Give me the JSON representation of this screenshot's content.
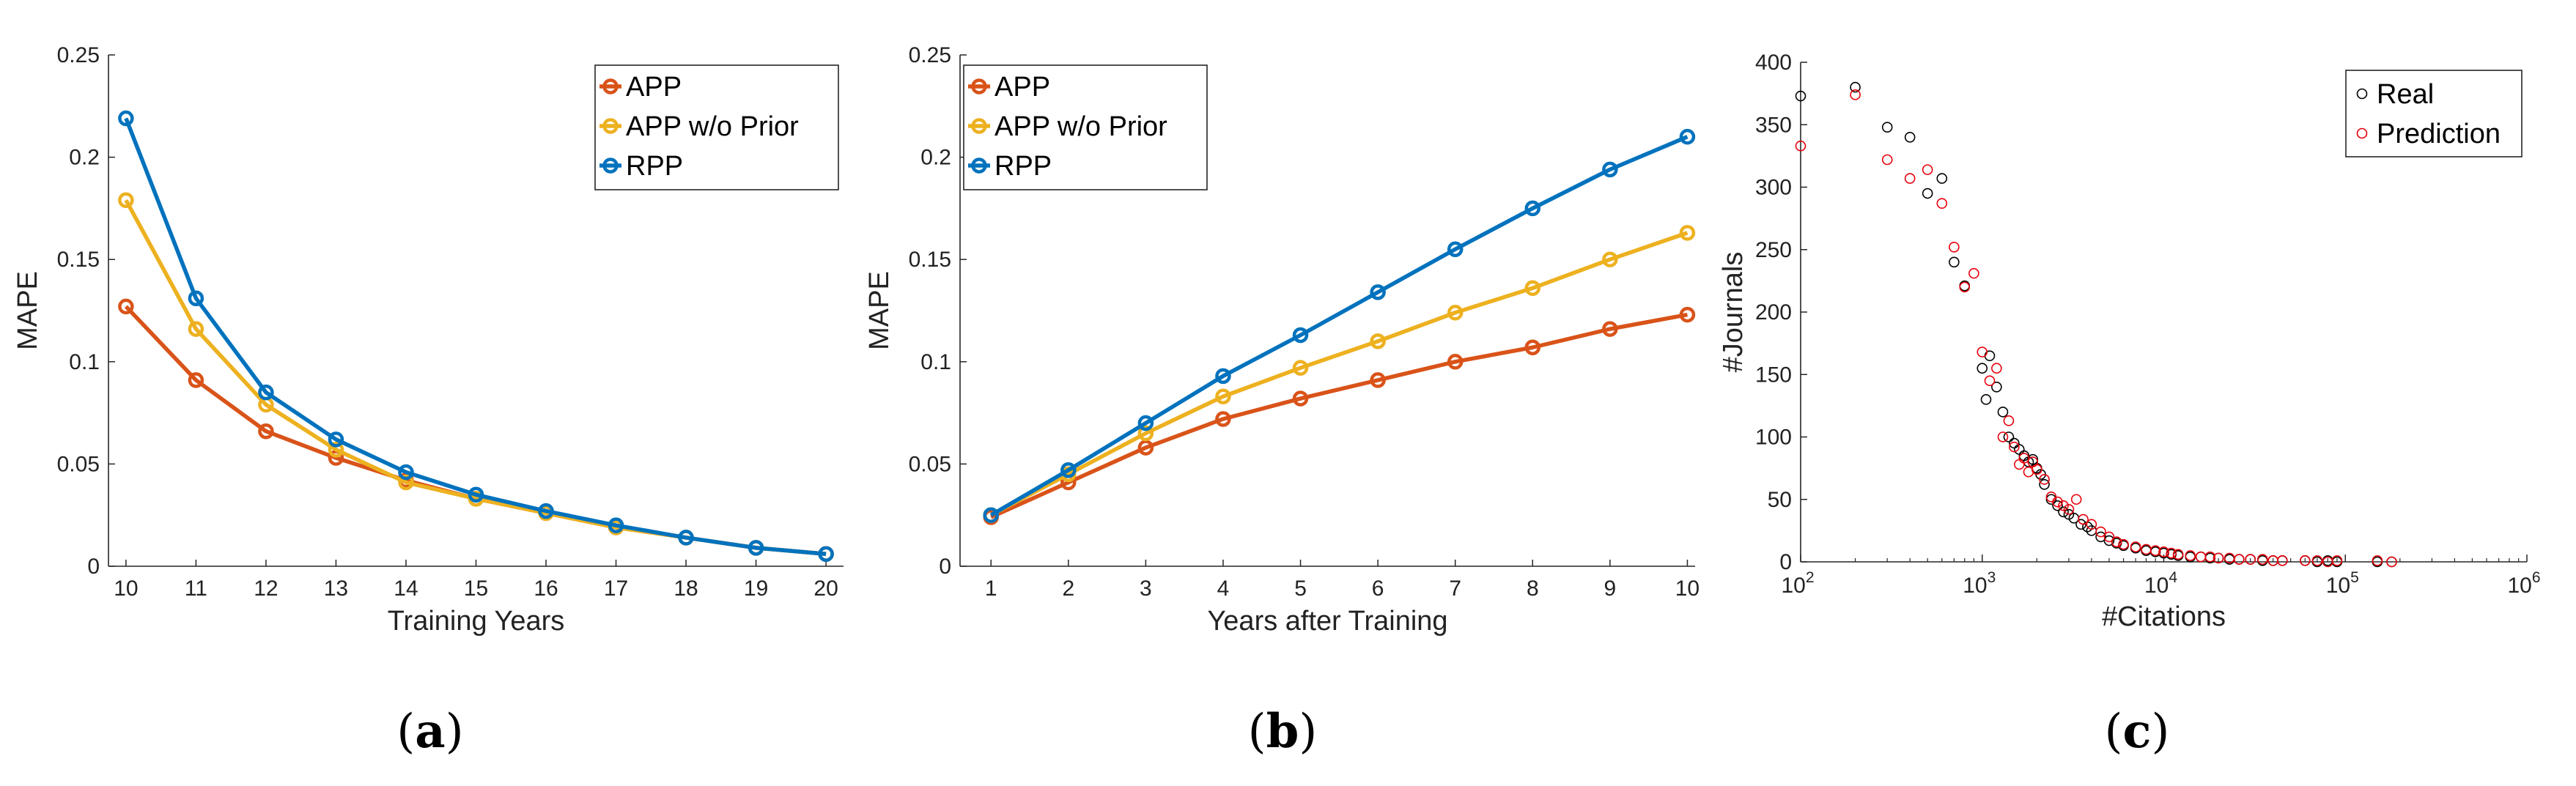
{
  "colors": {
    "APP": "#D95319",
    "APP w/o Prior": "#EDB120",
    "RPP": "#0072BD",
    "real": "#000000",
    "prediction": "#E8000B"
  },
  "captions": [
    "(a)",
    "(b)",
    "(c)"
  ],
  "chart_data": [
    {
      "type": "line",
      "title": "",
      "xlabel": "Training Years",
      "ylabel": "MAPE",
      "xlim": [
        9.75,
        20.25
      ],
      "ylim": [
        0,
        0.25
      ],
      "x": [
        10,
        11,
        12,
        13,
        14,
        15,
        16,
        17,
        18,
        19,
        20
      ],
      "xticks": [
        10,
        11,
        12,
        13,
        14,
        15,
        16,
        17,
        18,
        19,
        20
      ],
      "yticks": [
        0,
        0.05,
        0.1,
        0.15,
        0.2,
        0.25
      ],
      "ytick_labels": [
        "0",
        "0.05",
        "0.1",
        "0.15",
        "0.2",
        "0.25"
      ],
      "legend_position": "top-right",
      "series": [
        {
          "name": "APP",
          "values": [
            0.127,
            0.091,
            0.066,
            0.053,
            0.042,
            0.033,
            0.026,
            0.019,
            0.014,
            0.009,
            0.006
          ]
        },
        {
          "name": "APP w/o Prior",
          "values": [
            0.179,
            0.116,
            0.079,
            0.057,
            0.041,
            0.033,
            0.026,
            0.019,
            0.014,
            0.009,
            0.006
          ]
        },
        {
          "name": "RPP",
          "values": [
            0.219,
            0.131,
            0.085,
            0.062,
            0.046,
            0.035,
            0.027,
            0.02,
            0.014,
            0.009,
            0.006
          ]
        }
      ]
    },
    {
      "type": "line",
      "title": "",
      "xlabel": "Years after Training",
      "ylabel": "MAPE",
      "xlim": [
        0.6,
        10.1
      ],
      "ylim": [
        0,
        0.25
      ],
      "x": [
        1,
        2,
        3,
        4,
        5,
        6,
        7,
        8,
        9,
        10
      ],
      "xticks": [
        1,
        2,
        3,
        4,
        5,
        6,
        7,
        8,
        9,
        10
      ],
      "yticks": [
        0,
        0.05,
        0.1,
        0.15,
        0.2,
        0.25
      ],
      "ytick_labels": [
        "0",
        "0.05",
        "0.1",
        "0.15",
        "0.2",
        "0.25"
      ],
      "legend_position": "top-left",
      "series": [
        {
          "name": "APP",
          "values": [
            0.024,
            0.041,
            0.058,
            0.072,
            0.082,
            0.091,
            0.1,
            0.107,
            0.116,
            0.123
          ]
        },
        {
          "name": "APP w/o Prior",
          "values": [
            0.025,
            0.045,
            0.065,
            0.083,
            0.097,
            0.11,
            0.124,
            0.136,
            0.15,
            0.163
          ]
        },
        {
          "name": "RPP",
          "values": [
            0.025,
            0.047,
            0.07,
            0.093,
            0.113,
            0.134,
            0.155,
            0.175,
            0.194,
            0.21
          ]
        }
      ]
    },
    {
      "type": "scatter",
      "title": "",
      "xlabel": "#Citations",
      "ylabel": "#Journals",
      "xscale": "log",
      "xlim": [
        100,
        1000000
      ],
      "ylim": [
        0,
        400
      ],
      "xticks": [
        100,
        1000,
        10000,
        100000,
        1000000
      ],
      "xtick_exponents": [
        "2",
        "3",
        "4",
        "5",
        "6"
      ],
      "xtick_base": "10",
      "yticks": [
        0,
        50,
        100,
        150,
        200,
        250,
        300,
        350,
        400
      ],
      "legend_position": "top-right",
      "series": [
        {
          "name": "Real",
          "points": [
            [
              100,
              373
            ],
            [
              200,
              380
            ],
            [
              300,
              348
            ],
            [
              400,
              340
            ],
            [
              500,
              295
            ],
            [
              600,
              307
            ],
            [
              700,
              240
            ],
            [
              800,
              221
            ],
            [
              1000,
              155
            ],
            [
              1050,
              130
            ],
            [
              1100,
              165
            ],
            [
              1200,
              140
            ],
            [
              1300,
              120
            ],
            [
              1400,
              100
            ],
            [
              1500,
              95
            ],
            [
              1600,
              90
            ],
            [
              1700,
              85
            ],
            [
              1800,
              80
            ],
            [
              1900,
              82
            ],
            [
              2000,
              75
            ],
            [
              2100,
              70
            ],
            [
              2200,
              62
            ],
            [
              2400,
              50
            ],
            [
              2600,
              45
            ],
            [
              2800,
              40
            ],
            [
              3000,
              38
            ],
            [
              3200,
              35
            ],
            [
              3500,
              30
            ],
            [
              3800,
              28
            ],
            [
              4000,
              25
            ],
            [
              4500,
              20
            ],
            [
              5000,
              17
            ],
            [
              5500,
              15
            ],
            [
              6000,
              13
            ],
            [
              7000,
              11
            ],
            [
              8000,
              9
            ],
            [
              9000,
              8
            ],
            [
              10000,
              7
            ],
            [
              11000,
              6
            ],
            [
              12000,
              5
            ],
            [
              14000,
              4
            ],
            [
              16000,
              4
            ],
            [
              18000,
              3
            ],
            [
              20000,
              3
            ],
            [
              23000,
              2
            ],
            [
              26000,
              2
            ],
            [
              30000,
              2
            ],
            [
              35000,
              1
            ],
            [
              40000,
              1
            ],
            [
              45000,
              1
            ],
            [
              60000,
              1
            ],
            [
              70000,
              0
            ],
            [
              80000,
              1
            ],
            [
              90000,
              0
            ],
            [
              150000,
              0
            ],
            [
              180000,
              0
            ]
          ]
        },
        {
          "name": "Prediction",
          "points": [
            [
              100,
              333
            ],
            [
              200,
              374
            ],
            [
              300,
              322
            ],
            [
              400,
              307
            ],
            [
              500,
              314
            ],
            [
              600,
              287
            ],
            [
              700,
              252
            ],
            [
              800,
              220
            ],
            [
              900,
              231
            ],
            [
              1000,
              168
            ],
            [
              1100,
              145
            ],
            [
              1200,
              155
            ],
            [
              1300,
              100
            ],
            [
              1400,
              113
            ],
            [
              1500,
              92
            ],
            [
              1600,
              78
            ],
            [
              1700,
              83
            ],
            [
              1800,
              72
            ],
            [
              1900,
              80
            ],
            [
              2000,
              74
            ],
            [
              2200,
              66
            ],
            [
              2400,
              52
            ],
            [
              2600,
              48
            ],
            [
              2800,
              45
            ],
            [
              3000,
              42
            ],
            [
              3300,
              50
            ],
            [
              3600,
              34
            ],
            [
              4000,
              30
            ],
            [
              4500,
              24
            ],
            [
              5000,
              20
            ],
            [
              5500,
              16
            ],
            [
              6000,
              14
            ],
            [
              7000,
              12
            ],
            [
              8000,
              10
            ],
            [
              9000,
              9
            ],
            [
              10000,
              8
            ],
            [
              11000,
              7
            ],
            [
              12000,
              6
            ],
            [
              14000,
              5
            ],
            [
              16000,
              4
            ],
            [
              18000,
              4
            ],
            [
              20000,
              3
            ],
            [
              23000,
              3
            ],
            [
              26000,
              2
            ],
            [
              30000,
              2
            ],
            [
              35000,
              2
            ],
            [
              40000,
              1
            ],
            [
              45000,
              1
            ],
            [
              60000,
              1
            ],
            [
              70000,
              1
            ],
            [
              80000,
              0
            ],
            [
              90000,
              1
            ],
            [
              150000,
              1
            ],
            [
              180000,
              0
            ]
          ]
        }
      ]
    }
  ]
}
